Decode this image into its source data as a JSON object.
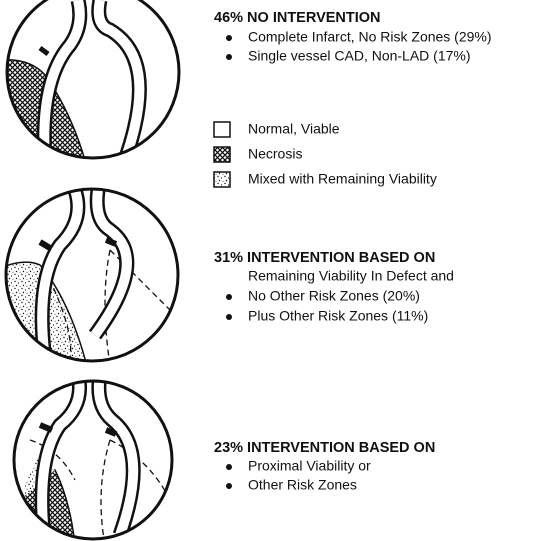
{
  "sections": [
    {
      "heading": "46% NO INTERVENTION",
      "bullets": [
        "Complete Infarct, No Risk Zones (29%)",
        "Single vessel CAD, Non-LAD (17%)"
      ]
    },
    {
      "heading": "31% INTERVENTION BASED ON",
      "intro": "Remaining Viability In Defect and",
      "bullets": [
        "No Other Risk Zones (20%)",
        "Plus Other Risk Zones (11%)"
      ]
    },
    {
      "heading": "23% INTERVENTION BASED ON",
      "bullets": [
        "Proximal Viability or",
        "Other Risk Zones"
      ]
    }
  ],
  "legend": {
    "items": [
      "Normal, Viable",
      "Necrosis",
      "Mixed with Remaining Viability"
    ]
  }
}
